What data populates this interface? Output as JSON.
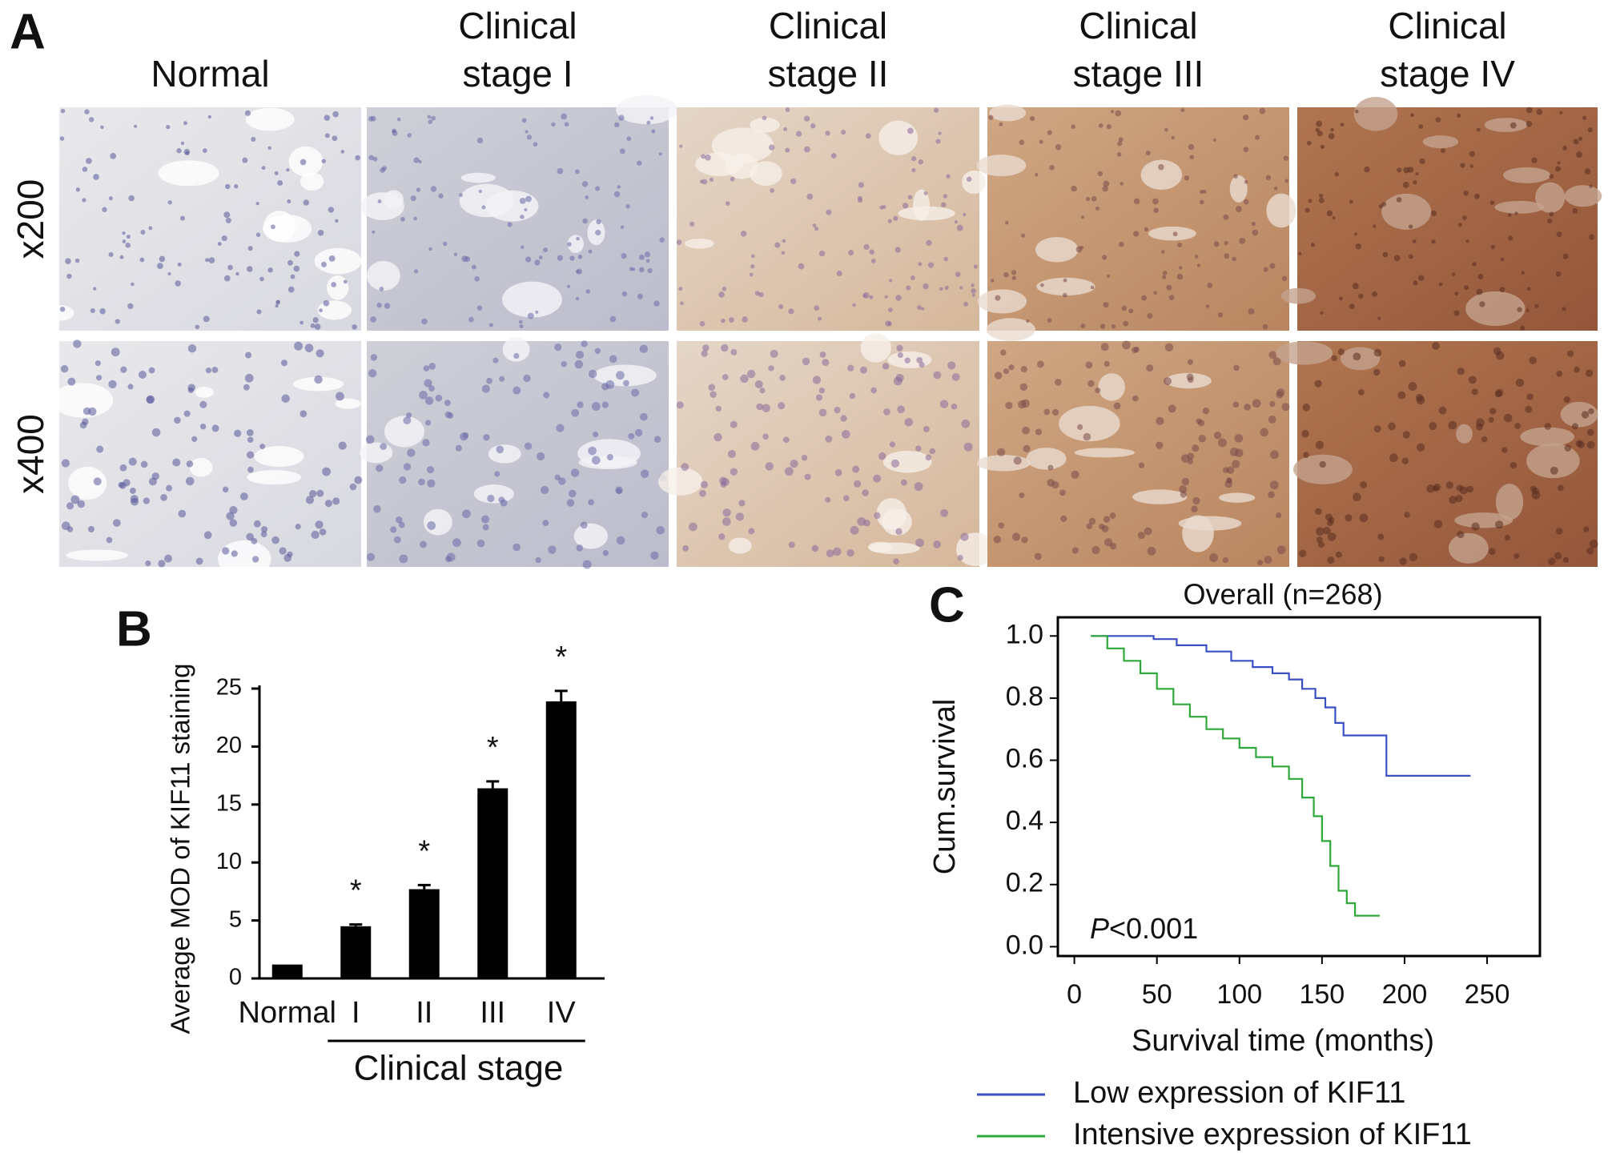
{
  "panel_a": {
    "label": "A",
    "columns": [
      [
        "Normal"
      ],
      [
        "Clinical",
        "stage I"
      ],
      [
        "Clinical",
        "stage II"
      ],
      [
        "Clinical",
        "stage III"
      ],
      [
        "Clinical",
        "stage IV"
      ]
    ],
    "rows": [
      "x200",
      "x400"
    ]
  },
  "chart_data": [
    {
      "type": "bar",
      "panel": "B",
      "ylabel": "Average MOD of KIF11 staining",
      "xlabel": "Clinical stage",
      "categories": [
        "Normal",
        "I",
        "II",
        "III",
        "IV"
      ],
      "values": [
        1.2,
        4.5,
        7.7,
        16.4,
        23.9
      ],
      "errors": [
        0,
        0.15,
        0.35,
        0.6,
        0.9
      ],
      "annotations": [
        null,
        "*",
        "*",
        "*",
        "*"
      ],
      "color": "#000000",
      "ylim": [
        0,
        25
      ],
      "yticks": [
        0,
        5,
        10,
        15,
        20,
        25
      ]
    },
    {
      "type": "line",
      "panel": "C",
      "title": "Overall (n=268)",
      "xlabel": "Survival time (months)",
      "ylabel": "Cum.survival",
      "annotation": {
        "italic": "P",
        "text": "<0.001"
      },
      "xlim": [
        -10,
        282
      ],
      "ylim": [
        -0.03,
        1.06
      ],
      "xticks": [
        0,
        50,
        100,
        150,
        200,
        250
      ],
      "yticks": [
        {
          "value": 0,
          "label": "0.0"
        },
        0.2,
        0.4,
        0.6,
        0.8,
        {
          "value": 1,
          "label": "1.0"
        }
      ],
      "series": [
        {
          "name": "Low expression of KIF11",
          "color": "#3a4fc4",
          "x": [
            10,
            48,
            48,
            62,
            62,
            80,
            80,
            95,
            95,
            108,
            108,
            120,
            120,
            130,
            130,
            138,
            138,
            146,
            146,
            152,
            152,
            158,
            158,
            163,
            163,
            189,
            189,
            240
          ],
          "values": [
            1.0,
            1.0,
            0.99,
            0.99,
            0.97,
            0.97,
            0.95,
            0.95,
            0.92,
            0.92,
            0.9,
            0.9,
            0.88,
            0.88,
            0.86,
            0.86,
            0.83,
            0.83,
            0.8,
            0.8,
            0.77,
            0.77,
            0.72,
            0.72,
            0.68,
            0.68,
            0.55,
            0.55
          ]
        },
        {
          "name": "Intensive expression of KIF11",
          "color": "#2fa83a",
          "x": [
            10,
            20,
            20,
            30,
            30,
            40,
            40,
            50,
            50,
            60,
            60,
            70,
            70,
            80,
            80,
            90,
            90,
            100,
            100,
            110,
            110,
            120,
            120,
            130,
            130,
            138,
            138,
            145,
            145,
            150,
            150,
            155,
            155,
            160,
            160,
            165,
            165,
            170,
            170,
            185
          ],
          "values": [
            1.0,
            1.0,
            0.96,
            0.96,
            0.92,
            0.92,
            0.88,
            0.88,
            0.83,
            0.83,
            0.78,
            0.78,
            0.74,
            0.74,
            0.7,
            0.7,
            0.67,
            0.67,
            0.64,
            0.64,
            0.61,
            0.61,
            0.58,
            0.58,
            0.54,
            0.54,
            0.48,
            0.48,
            0.42,
            0.42,
            0.34,
            0.34,
            0.26,
            0.26,
            0.18,
            0.18,
            0.14,
            0.14,
            0.1,
            0.1
          ]
        }
      ]
    }
  ]
}
